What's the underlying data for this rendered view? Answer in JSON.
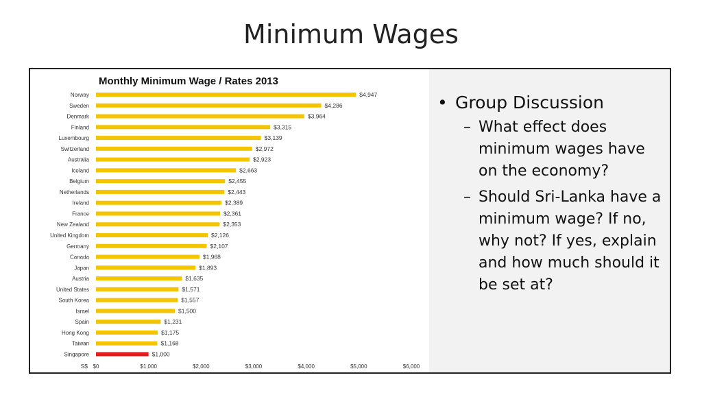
{
  "slide": {
    "title": "Minimum Wages"
  },
  "discussion": {
    "heading": "Group Discussion",
    "questions": [
      "What effect does minimum wages have on the economy?",
      "Should Sri-Lanka have a minimum wage? If no, why not? If yes, explain and how much should it be set at?"
    ]
  },
  "chart_data": {
    "type": "bar",
    "orientation": "horizontal",
    "title": "Monthly Minimum Wage / Rates 2013",
    "categories": [
      "Norway",
      "Sweden",
      "Denmark",
      "Finland",
      "Luxembourg",
      "Switzerland",
      "Australia",
      "Iceland",
      "Belgium",
      "Netherlands",
      "Ireland",
      "France",
      "New Zealand",
      "United Kingdom",
      "Germany",
      "Canada",
      "Japan",
      "Austria",
      "United States",
      "South Korea",
      "Israel",
      "Spain",
      "Hong Kong",
      "Taiwan",
      "Singapore"
    ],
    "values": [
      4947,
      4286,
      3964,
      3315,
      3139,
      2972,
      2923,
      2663,
      2455,
      2443,
      2389,
      2361,
      2353,
      2126,
      2107,
      1968,
      1893,
      1635,
      1571,
      1557,
      1500,
      1231,
      1175,
      1168,
      1000
    ],
    "value_labels": [
      "$4,947",
      "$4,286",
      "$3,964",
      "$3,315",
      "$3,139",
      "$2,972",
      "$2,923",
      "$2,663",
      "$2,455",
      "$2,443",
      "$2,389",
      "$2,361",
      "$2,353",
      "$2,126",
      "$2,107",
      "$1,968",
      "$1,893",
      "$1,635",
      "$1,571",
      "$1,557",
      "$1,500",
      "$1,231",
      "$1,175",
      "$1,168",
      "$1,000"
    ],
    "highlight": "Singapore",
    "xlabel": "S$",
    "xlim": [
      0,
      6000
    ],
    "xticks": [
      0,
      1000,
      2000,
      3000,
      4000,
      5000,
      6000
    ],
    "xtick_labels": [
      "$0",
      "$1,000",
      "$2,000",
      "$3,000",
      "$4,000",
      "$5,000",
      "$6,000"
    ],
    "grid": false,
    "legend": "none",
    "colors": {
      "bar": "#f5c400",
      "highlight": "#e01e1e"
    }
  }
}
